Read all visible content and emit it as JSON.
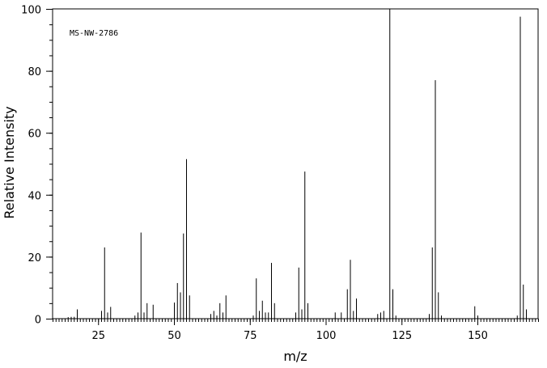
{
  "chart_data": {
    "type": "bar",
    "annotation": "MS-NW-2786",
    "xlabel": "m/z",
    "ylabel": "Relative Intensity",
    "xlim": [
      10,
      170
    ],
    "ylim": [
      0,
      100
    ],
    "x_major_ticks": [
      25,
      50,
      75,
      100,
      125,
      150
    ],
    "x_minor_step": 1,
    "y_major_ticks": [
      0,
      20,
      40,
      60,
      80,
      100
    ],
    "y_minor_step": 5,
    "peaks": [
      {
        "x": 15,
        "y": 0.5
      },
      {
        "x": 16,
        "y": 0.6
      },
      {
        "x": 17,
        "y": 0.6
      },
      {
        "x": 18,
        "y": 3.0
      },
      {
        "x": 26,
        "y": 2.5
      },
      {
        "x": 27,
        "y": 23.0
      },
      {
        "x": 28,
        "y": 2.0
      },
      {
        "x": 29,
        "y": 3.8
      },
      {
        "x": 37,
        "y": 1.0
      },
      {
        "x": 38,
        "y": 2.0
      },
      {
        "x": 39,
        "y": 27.8
      },
      {
        "x": 40,
        "y": 2.0
      },
      {
        "x": 41,
        "y": 5.0
      },
      {
        "x": 43,
        "y": 4.5
      },
      {
        "x": 50,
        "y": 5.2
      },
      {
        "x": 51,
        "y": 11.5
      },
      {
        "x": 52,
        "y": 8.5
      },
      {
        "x": 53,
        "y": 27.5
      },
      {
        "x": 54,
        "y": 51.5
      },
      {
        "x": 55,
        "y": 7.5
      },
      {
        "x": 62,
        "y": 1.5
      },
      {
        "x": 63,
        "y": 2.5
      },
      {
        "x": 64,
        "y": 1.0
      },
      {
        "x": 65,
        "y": 5.0
      },
      {
        "x": 66,
        "y": 2.0
      },
      {
        "x": 67,
        "y": 7.5
      },
      {
        "x": 76,
        "y": 1.0
      },
      {
        "x": 77,
        "y": 13.0
      },
      {
        "x": 78,
        "y": 2.5
      },
      {
        "x": 79,
        "y": 5.8
      },
      {
        "x": 80,
        "y": 2.0
      },
      {
        "x": 81,
        "y": 2.0
      },
      {
        "x": 82,
        "y": 18.0
      },
      {
        "x": 83,
        "y": 5.0
      },
      {
        "x": 90,
        "y": 2.0
      },
      {
        "x": 91,
        "y": 16.5
      },
      {
        "x": 92,
        "y": 3.0
      },
      {
        "x": 93,
        "y": 47.5
      },
      {
        "x": 94,
        "y": 5.0
      },
      {
        "x": 103,
        "y": 2.0
      },
      {
        "x": 105,
        "y": 2.0
      },
      {
        "x": 107,
        "y": 9.5
      },
      {
        "x": 108,
        "y": 19.0
      },
      {
        "x": 109,
        "y": 2.5
      },
      {
        "x": 110,
        "y": 6.5
      },
      {
        "x": 117,
        "y": 1.5
      },
      {
        "x": 118,
        "y": 2.0
      },
      {
        "x": 119,
        "y": 2.5
      },
      {
        "x": 121,
        "y": 100.0
      },
      {
        "x": 122,
        "y": 9.5
      },
      {
        "x": 123,
        "y": 1.0
      },
      {
        "x": 134,
        "y": 1.5
      },
      {
        "x": 135,
        "y": 23.0
      },
      {
        "x": 136,
        "y": 77.0
      },
      {
        "x": 137,
        "y": 8.5
      },
      {
        "x": 138,
        "y": 1.0
      },
      {
        "x": 149,
        "y": 4.0
      },
      {
        "x": 150,
        "y": 1.0
      },
      {
        "x": 163,
        "y": 1.0
      },
      {
        "x": 164,
        "y": 97.5
      },
      {
        "x": 165,
        "y": 11.0
      },
      {
        "x": 166,
        "y": 3.0
      }
    ]
  }
}
